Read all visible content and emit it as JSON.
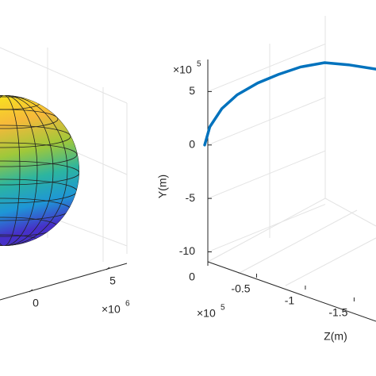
{
  "chart_data": [
    {
      "type": "surface3d",
      "xticks": [
        0,
        5
      ],
      "x_multiplier": "×10",
      "x_exponent": "6"
    },
    {
      "type": "line3d",
      "ylabel": "Y(m)",
      "zlabel": "Z(m)",
      "ylim": [
        -11,
        8
      ],
      "yticks": [
        -10,
        -5,
        0,
        5
      ],
      "y_multiplier": "×10",
      "y_exponent": "5",
      "zlim": [
        0,
        -1.7
      ],
      "zticks": [
        0,
        -0.5,
        -1,
        -1.5
      ],
      "z_multiplier": "×10",
      "z_exponent": "5",
      "xlim": [
        0,
        1
      ],
      "series": [
        {
          "color": "#0072bd",
          "x": [
            0,
            0.03,
            0.1,
            0.19,
            0.31,
            0.43,
            0.56,
            0.7,
            0.84,
            1.0
          ],
          "values": [
            0,
            1.7,
            3.4,
            4.7,
            5.8,
            6.6,
            7.3,
            7.7,
            7.5,
            7.1
          ]
        }
      ]
    }
  ]
}
